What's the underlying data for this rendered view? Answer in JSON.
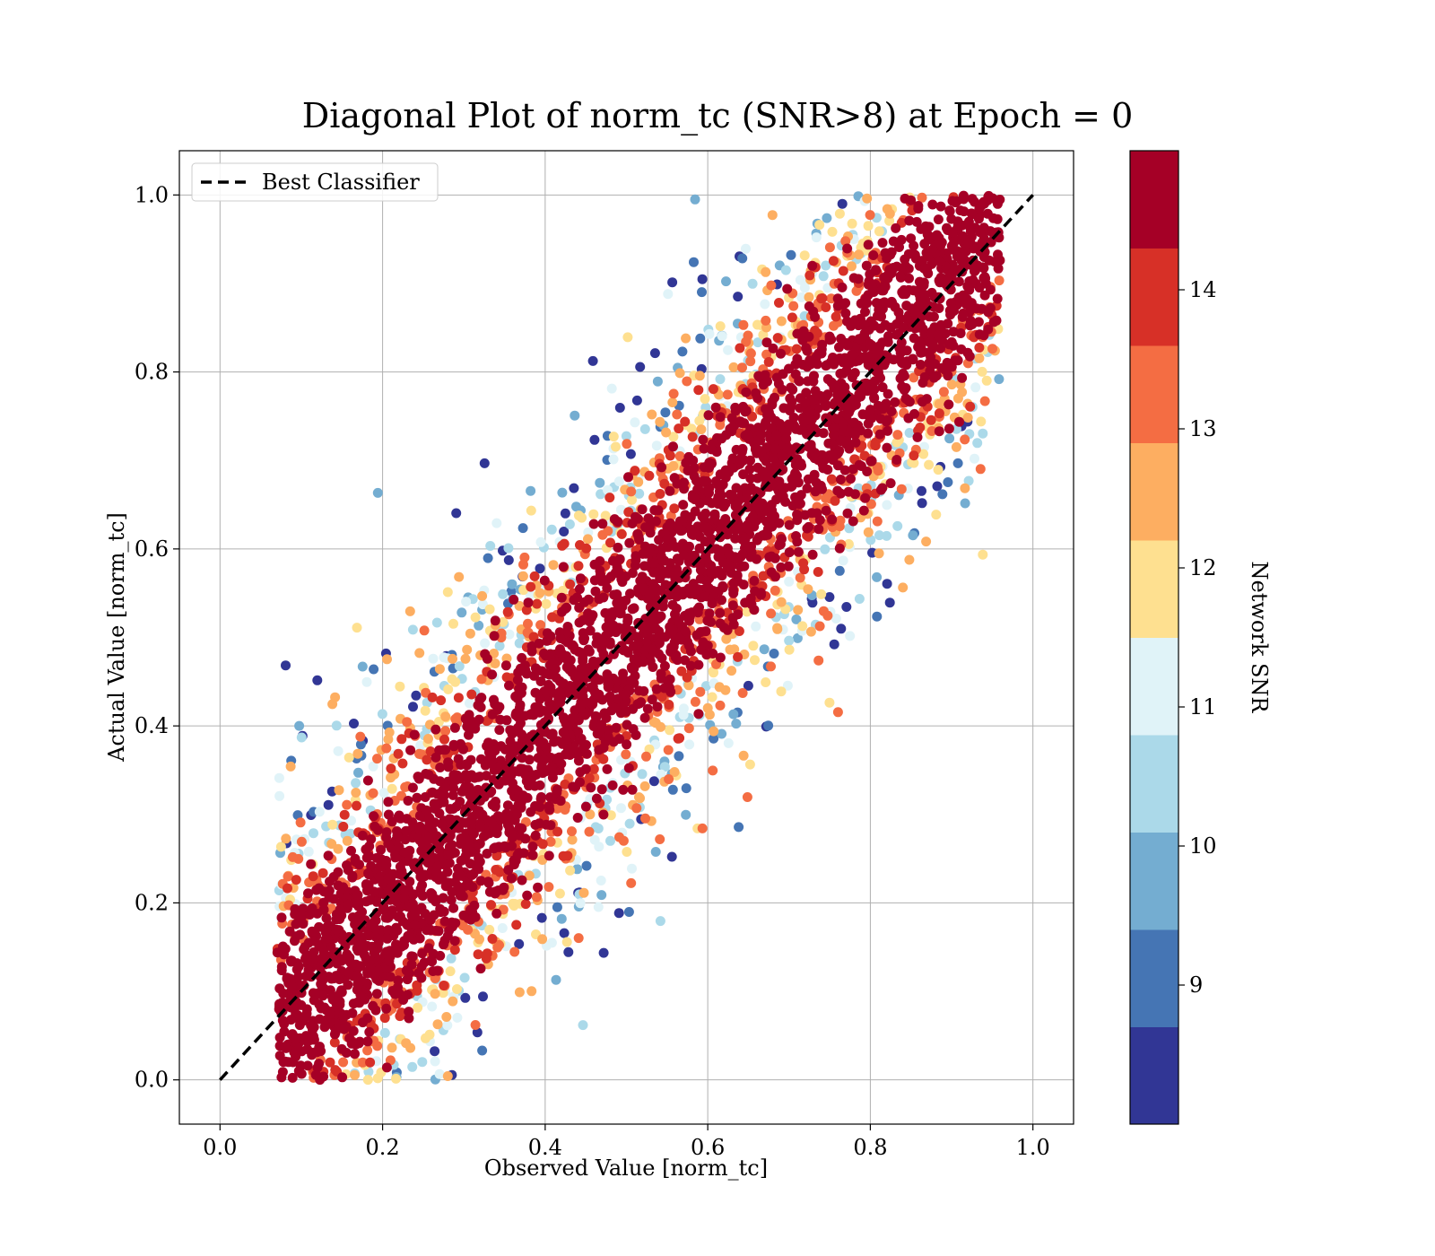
{
  "chart_data": {
    "type": "scatter",
    "title": "Diagonal Plot of norm_tc (SNR>8) at Epoch = 0",
    "xlabel": "Observed Value [norm_tc]",
    "ylabel": "Actual Value [norm_tc]",
    "xlim": [
      -0.05,
      1.05
    ],
    "ylim": [
      -0.05,
      1.05
    ],
    "xticks": [
      "0.0",
      "0.2",
      "0.4",
      "0.6",
      "0.8",
      "1.0"
    ],
    "yticks": [
      "0.0",
      "0.2",
      "0.4",
      "0.6",
      "0.8",
      "1.0"
    ],
    "grid": true,
    "legend": {
      "placement": "top-left",
      "entries": [
        "Best Classifier"
      ]
    },
    "reference_line": {
      "name": "Best Classifier",
      "x": [
        0.0,
        1.0
      ],
      "y": [
        0.0,
        1.0
      ],
      "style": "dashed",
      "color": "#000000"
    },
    "point_density_note": "dense cloud along diagonal, y approx x within +/-0.3, clipped to [0,1]",
    "colorbar": {
      "label": "Network SNR",
      "range": [
        8,
        15
      ],
      "ticks": [
        "9",
        "10",
        "11",
        "12",
        "13",
        "14"
      ],
      "bins": [
        {
          "from": 8.0,
          "to": 8.7,
          "color": "#313695"
        },
        {
          "from": 8.7,
          "to": 9.4,
          "color": "#4575b4"
        },
        {
          "from": 9.4,
          "to": 10.1,
          "color": "#74add1"
        },
        {
          "from": 10.1,
          "to": 10.8,
          "color": "#abd9e9"
        },
        {
          "from": 10.8,
          "to": 11.5,
          "color": "#e0f3f8"
        },
        {
          "from": 11.5,
          "to": 12.2,
          "color": "#fee090"
        },
        {
          "from": 12.2,
          "to": 12.9,
          "color": "#fdae61"
        },
        {
          "from": 12.9,
          "to": 13.6,
          "color": "#f46d43"
        },
        {
          "from": 13.6,
          "to": 14.3,
          "color": "#d73027"
        },
        {
          "from": 14.3,
          "to": 15.0,
          "color": "#a50026"
        }
      ]
    }
  }
}
